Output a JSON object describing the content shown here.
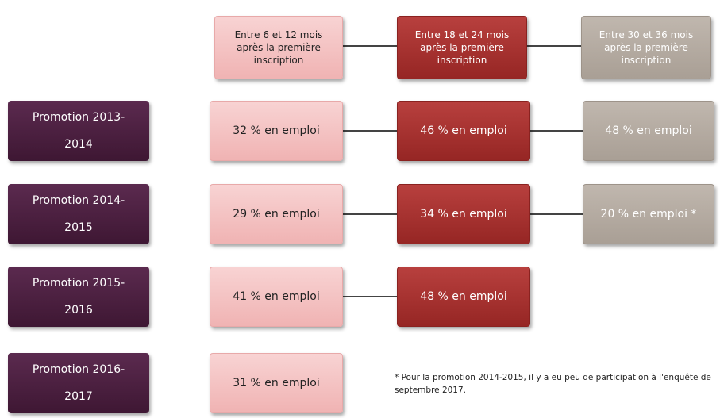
{
  "headers": [
    "Entre 6 et 12 mois après la première inscription",
    "Entre 18 et 24 mois après la première inscription",
    "Entre  30 et 36 mois après la première inscription"
  ],
  "rows": [
    {
      "label": "Promotion 2013-2014",
      "cells": [
        "32 % en emploi",
        "46 % en emploi",
        "48 % en emploi"
      ]
    },
    {
      "label": "Promotion 2014-2015",
      "cells": [
        "29 % en emploi",
        "34 % en emploi",
        "20 % en emploi *"
      ]
    },
    {
      "label": "Promotion 2015-2016",
      "cells": [
        "41 % en emploi",
        "48 % en emploi"
      ]
    },
    {
      "label": "Promotion 2016-2017",
      "cells": [
        "31 % en emploi"
      ]
    }
  ],
  "footnote": "* Pour la promotion 2014-2015, il y a eu peu de participation à l'enquête de septembre 2017."
}
